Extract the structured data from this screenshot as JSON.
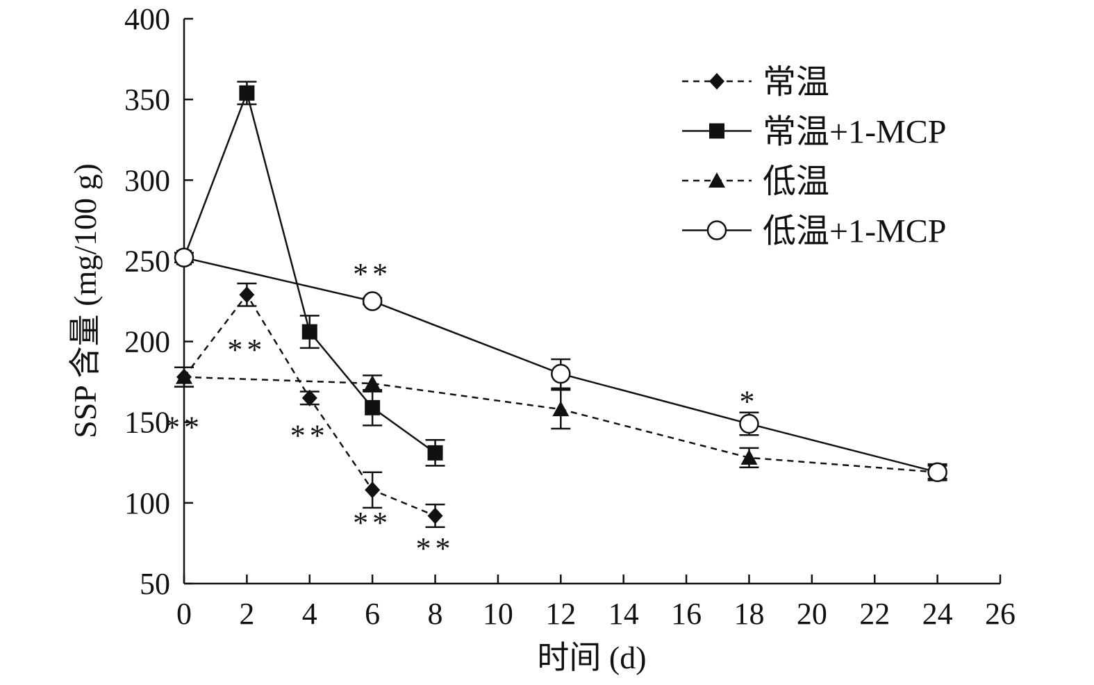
{
  "chart_data": {
    "type": "line",
    "title": "",
    "xlabel": "时间 (d)",
    "ylabel": "SSP 含量 (mg/100 g)",
    "xlim": [
      0,
      26
    ],
    "ylim": [
      50,
      400
    ],
    "xticks": [
      0,
      2,
      4,
      6,
      8,
      10,
      12,
      14,
      16,
      18,
      20,
      22,
      24,
      26
    ],
    "yticks": [
      50,
      100,
      150,
      200,
      250,
      300,
      350,
      400
    ],
    "legend_position": "top-right",
    "series": [
      {
        "name": "常温",
        "marker": "diamond",
        "dash": true,
        "x": [
          0,
          2,
          4,
          6,
          8
        ],
        "y": [
          178,
          229,
          165,
          108,
          92
        ],
        "err": [
          6,
          7,
          4,
          11,
          7
        ]
      },
      {
        "name": "常温+1-MCP",
        "marker": "square",
        "dash": false,
        "x": [
          0,
          2,
          4,
          6,
          8
        ],
        "y": [
          252,
          354,
          206,
          159,
          131
        ],
        "err": [
          3,
          7,
          10,
          11,
          8
        ]
      },
      {
        "name": "低温",
        "marker": "triangle",
        "dash": true,
        "x": [
          0,
          6,
          12,
          18,
          24
        ],
        "y": [
          178,
          174,
          158,
          128,
          119
        ],
        "err": [
          6,
          5,
          12,
          6,
          4
        ]
      },
      {
        "name": "低温+1-MCP",
        "marker": "circle",
        "dash": false,
        "x": [
          0,
          6,
          12,
          18,
          24
        ],
        "y": [
          252,
          225,
          180,
          149,
          119
        ],
        "err": [
          3,
          2,
          9,
          7,
          5
        ]
      }
    ],
    "annotations": [
      {
        "text": "**",
        "x": 0,
        "y": 150
      },
      {
        "text": "**",
        "x": 2,
        "y": 198
      },
      {
        "text": "**",
        "x": 4,
        "y": 145
      },
      {
        "text": "**",
        "x": 6,
        "y": 91
      },
      {
        "text": "**",
        "x": 8,
        "y": 75
      },
      {
        "text": "**",
        "x": 6,
        "y": 245
      },
      {
        "text": "*",
        "x": 18,
        "y": 166
      }
    ]
  }
}
